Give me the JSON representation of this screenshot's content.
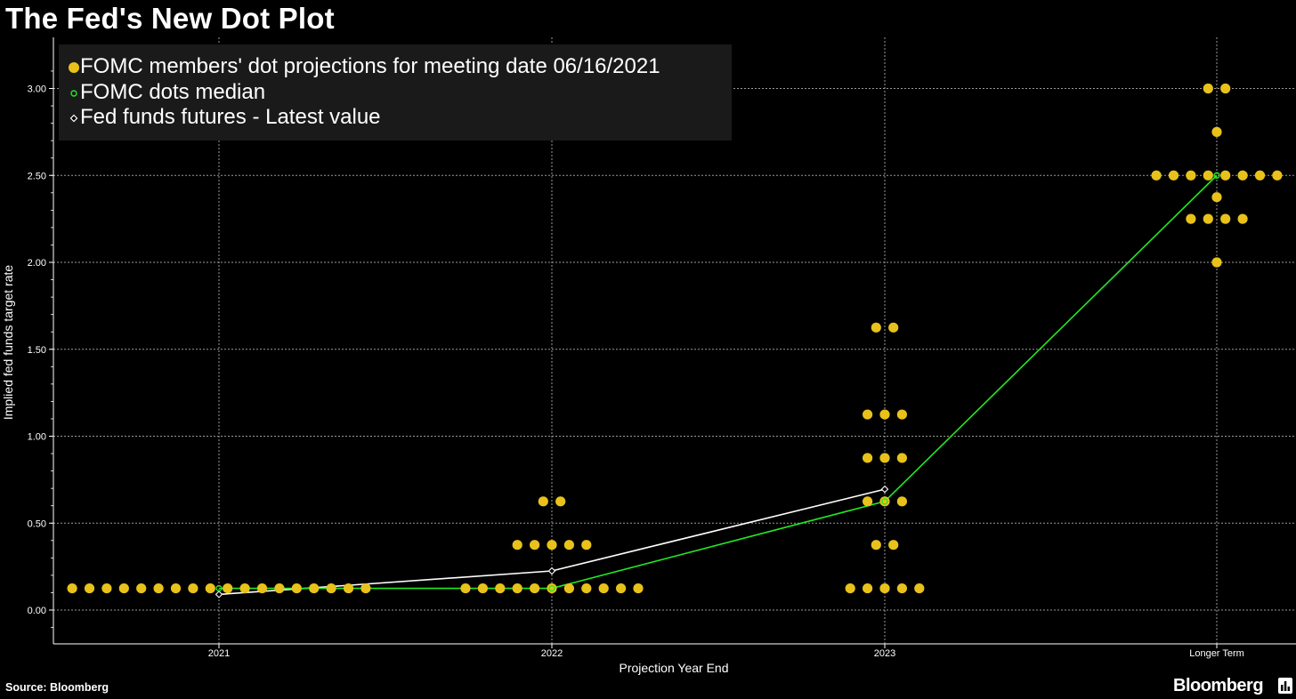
{
  "header": {
    "title": "The Fed's New Dot Plot"
  },
  "footer": {
    "source": "Source: Bloomberg",
    "brand": "Bloomberg"
  },
  "colors": {
    "dots": "#e8c21a",
    "median": "#22e822",
    "futures": "#ffffff",
    "grid": "#9a9a9a",
    "legend_bg": "#1a1a1a"
  },
  "chart_data": {
    "type": "scatter",
    "xlabel": "Projection Year End",
    "ylabel": "Implied fed funds target rate",
    "categories": [
      "2021",
      "2022",
      "2023",
      "Longer Term"
    ],
    "ylim": [
      -0.2,
      3.25
    ],
    "yticks": [
      "0.00",
      "0.50",
      "1.00",
      "1.50",
      "2.00",
      "2.50",
      "3.00"
    ],
    "grid": true,
    "legend_position": "top-left",
    "legend": [
      "FOMC members' dot projections for meeting date 06/16/2021",
      "FOMC dots median",
      "Fed funds futures - Latest value"
    ],
    "series": [
      {
        "name": "FOMC members' dot projections for meeting date 06/16/2021",
        "points": [
          {
            "category": "2021",
            "value": 0.125,
            "count": 18
          },
          {
            "category": "2022",
            "value": 0.125,
            "count": 11
          },
          {
            "category": "2022",
            "value": 0.375,
            "count": 5
          },
          {
            "category": "2022",
            "value": 0.625,
            "count": 2
          },
          {
            "category": "2023",
            "value": 0.125,
            "count": 5
          },
          {
            "category": "2023",
            "value": 0.375,
            "count": 2
          },
          {
            "category": "2023",
            "value": 0.625,
            "count": 3
          },
          {
            "category": "2023",
            "value": 0.875,
            "count": 3
          },
          {
            "category": "2023",
            "value": 1.125,
            "count": 3
          },
          {
            "category": "2023",
            "value": 1.625,
            "count": 2
          },
          {
            "category": "Longer Term",
            "value": 2.0,
            "count": 1
          },
          {
            "category": "Longer Term",
            "value": 2.25,
            "count": 4
          },
          {
            "category": "Longer Term",
            "value": 2.375,
            "count": 1
          },
          {
            "category": "Longer Term",
            "value": 2.5,
            "count": 8
          },
          {
            "category": "Longer Term",
            "value": 2.75,
            "count": 1
          },
          {
            "category": "Longer Term",
            "value": 3.0,
            "count": 2
          }
        ]
      },
      {
        "name": "FOMC dots median",
        "values": [
          0.125,
          0.125,
          0.625,
          2.5
        ]
      },
      {
        "name": "Fed funds futures - Latest value",
        "values": [
          0.09,
          0.225,
          0.695,
          null
        ]
      }
    ]
  }
}
